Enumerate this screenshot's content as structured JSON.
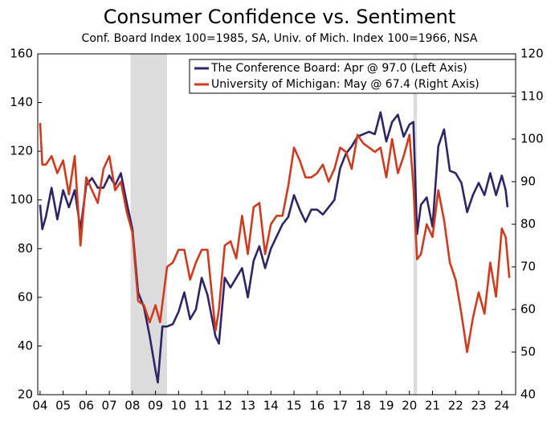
{
  "chart_data": {
    "type": "line",
    "title": "Consumer Confidence vs. Sentiment",
    "subtitle": "Conf. Board Index 100=1985, SA, Univ. of Mich. Index 100=1966, NSA",
    "xlim": [
      2003.9,
      2024.6
    ],
    "xticks": [
      {
        "value": 2004,
        "label": "04"
      },
      {
        "value": 2005,
        "label": "05"
      },
      {
        "value": 2006,
        "label": "06"
      },
      {
        "value": 2007,
        "label": "07"
      },
      {
        "value": 2008,
        "label": "08"
      },
      {
        "value": 2009,
        "label": "09"
      },
      {
        "value": 2010,
        "label": "10"
      },
      {
        "value": 2011,
        "label": "11"
      },
      {
        "value": 2012,
        "label": "12"
      },
      {
        "value": 2013,
        "label": "13"
      },
      {
        "value": 2014,
        "label": "14"
      },
      {
        "value": 2015,
        "label": "15"
      },
      {
        "value": 2016,
        "label": "16"
      },
      {
        "value": 2017,
        "label": "17"
      },
      {
        "value": 2018,
        "label": "18"
      },
      {
        "value": 2019,
        "label": "19"
      },
      {
        "value": 2020,
        "label": "20"
      },
      {
        "value": 2021,
        "label": "21"
      },
      {
        "value": 2022,
        "label": "22"
      },
      {
        "value": 2023,
        "label": "23"
      },
      {
        "value": 2024,
        "label": "24"
      }
    ],
    "ylim": [
      20,
      160
    ],
    "yticks": [
      20,
      40,
      60,
      80,
      100,
      120,
      140,
      160
    ],
    "y2lim": [
      40,
      120
    ],
    "y2ticks": [
      40,
      50,
      60,
      70,
      80,
      90,
      100,
      110,
      120
    ],
    "recessions": [
      [
        2007.92,
        2009.5
      ],
      [
        2020.17,
        2020.33
      ]
    ],
    "recession_color": "#dcdcdc",
    "legend": "upper right",
    "series": [
      {
        "name": "The Conference Board: Apr @ 97.0 (Left Axis)",
        "color": "#2e2466",
        "axis": "y",
        "x": [
          2004.0,
          2004.1,
          2004.25,
          2004.5,
          2004.75,
          2005.0,
          2005.25,
          2005.5,
          2005.75,
          2006.0,
          2006.25,
          2006.5,
          2006.75,
          2007.0,
          2007.25,
          2007.5,
          2007.75,
          2008.0,
          2008.25,
          2008.5,
          2008.75,
          2009.0,
          2009.1,
          2009.3,
          2009.5,
          2009.75,
          2010.0,
          2010.25,
          2010.5,
          2010.75,
          2011.0,
          2011.25,
          2011.6,
          2011.75,
          2012.0,
          2012.25,
          2012.5,
          2012.75,
          2013.0,
          2013.25,
          2013.5,
          2013.75,
          2014.0,
          2014.25,
          2014.5,
          2014.75,
          2015.0,
          2015.25,
          2015.5,
          2015.75,
          2016.0,
          2016.25,
          2016.5,
          2016.75,
          2017.0,
          2017.25,
          2017.5,
          2017.75,
          2018.0,
          2018.25,
          2018.5,
          2018.75,
          2019.0,
          2019.25,
          2019.5,
          2019.75,
          2020.0,
          2020.17,
          2020.33,
          2020.5,
          2020.75,
          2021.0,
          2021.25,
          2021.5,
          2021.75,
          2022.0,
          2022.25,
          2022.5,
          2022.75,
          2023.0,
          2023.25,
          2023.5,
          2023.75,
          2024.0,
          2024.17,
          2024.25
        ],
        "values": [
          98,
          88,
          93,
          105,
          92,
          104,
          97,
          104,
          88,
          106,
          109,
          105,
          105,
          110,
          106,
          111,
          99,
          88,
          62,
          56,
          44,
          30,
          25,
          48,
          48,
          49,
          54,
          62,
          51,
          55,
          68,
          61,
          44,
          41,
          68,
          64,
          68,
          72,
          60,
          75,
          81,
          72,
          80,
          85,
          90,
          93,
          102,
          96,
          91,
          96,
          96,
          94,
          97,
          100,
          113,
          119,
          122,
          126,
          127,
          128,
          127,
          136,
          124,
          132,
          135,
          126,
          131,
          132,
          86,
          98,
          101,
          89,
          122,
          129,
          112,
          111,
          107,
          95,
          102,
          107,
          102,
          111,
          102,
          110,
          104,
          97
        ]
      },
      {
        "name": "University of Michigan: May @ 67.4 (Right Axis)",
        "color": "#d03a1f",
        "axis": "y2",
        "x": [
          2004.0,
          2004.1,
          2004.25,
          2004.5,
          2004.75,
          2005.0,
          2005.25,
          2005.5,
          2005.75,
          2006.0,
          2006.25,
          2006.5,
          2006.75,
          2007.0,
          2007.25,
          2007.5,
          2007.75,
          2008.0,
          2008.25,
          2008.5,
          2008.75,
          2009.0,
          2009.2,
          2009.5,
          2009.75,
          2010.0,
          2010.25,
          2010.5,
          2010.75,
          2011.0,
          2011.25,
          2011.6,
          2011.75,
          2012.0,
          2012.25,
          2012.5,
          2012.75,
          2013.0,
          2013.25,
          2013.5,
          2013.75,
          2014.0,
          2014.25,
          2014.5,
          2014.75,
          2015.0,
          2015.25,
          2015.5,
          2015.75,
          2016.0,
          2016.25,
          2016.5,
          2016.75,
          2017.0,
          2017.25,
          2017.5,
          2017.75,
          2018.0,
          2018.25,
          2018.5,
          2018.75,
          2019.0,
          2019.25,
          2019.5,
          2019.75,
          2020.0,
          2020.17,
          2020.33,
          2020.5,
          2020.75,
          2021.0,
          2021.25,
          2021.5,
          2021.75,
          2022.0,
          2022.25,
          2022.5,
          2022.75,
          2023.0,
          2023.25,
          2023.5,
          2023.75,
          2024.0,
          2024.17,
          2024.33
        ],
        "values": [
          103.8,
          94,
          94,
          96,
          92,
          95,
          87,
          96,
          75,
          91,
          88,
          85,
          93,
          96,
          88,
          90,
          83,
          78,
          62,
          61,
          57,
          61,
          57,
          70,
          71,
          74,
          74,
          67,
          71,
          74,
          74,
          55,
          60,
          75,
          76,
          72,
          82,
          73,
          84,
          85,
          73,
          80,
          82,
          82,
          89,
          98,
          95,
          91,
          91,
          92,
          94,
          90,
          93,
          98,
          97,
          93,
          101,
          99,
          98,
          97,
          98,
          91,
          100,
          92,
          96,
          101,
          89,
          71.8,
          73,
          80,
          77,
          88,
          81,
          71,
          67,
          59,
          50,
          58,
          64,
          59,
          71,
          63,
          79,
          77,
          67.4
        ]
      }
    ]
  }
}
